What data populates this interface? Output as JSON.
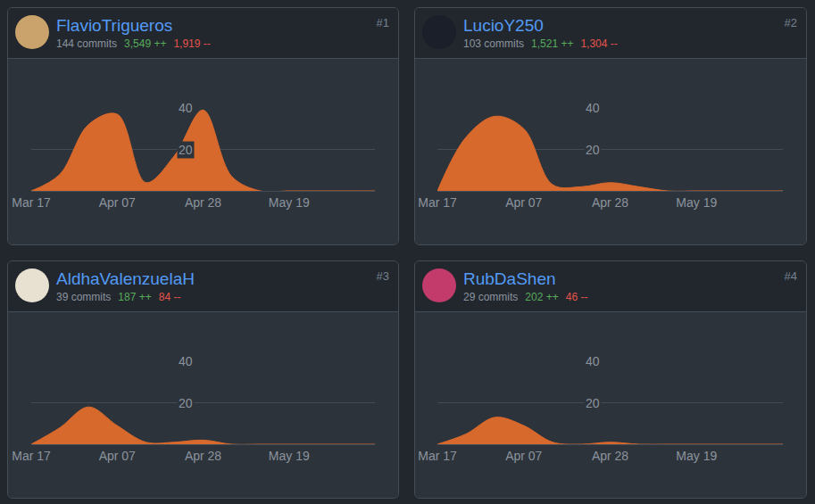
{
  "chart_data": [
    {
      "type": "area",
      "title": "FlavioTrigueros",
      "rank": "#1",
      "commits": "144 commits",
      "additions": "3,549 ++",
      "deletions": "1,919 --",
      "categories": [
        "Mar 17",
        null,
        null,
        "Apr 07",
        null,
        null,
        "Apr 28",
        null,
        null,
        "May 19",
        null,
        null,
        null
      ],
      "values": [
        0,
        8,
        32,
        37,
        4,
        17,
        39,
        7,
        0,
        0,
        0,
        0,
        0
      ],
      "color": "#d8692c",
      "ylim": [
        0,
        40
      ],
      "yticks": [
        20,
        40
      ],
      "grid": true
    },
    {
      "type": "area",
      "title": "LucioY250",
      "rank": "#2",
      "commits": "103 commits",
      "additions": "1,521 ++",
      "deletions": "1,304 --",
      "categories": [
        "Mar 17",
        null,
        null,
        "Apr 07",
        null,
        null,
        "Apr 28",
        null,
        null,
        "May 19",
        null,
        null,
        null
      ],
      "values": [
        0,
        26,
        36,
        30,
        3,
        2,
        4,
        2,
        0,
        0,
        0,
        0,
        0
      ],
      "color": "#d8692c",
      "ylim": [
        0,
        40
      ],
      "yticks": [
        20,
        40
      ],
      "grid": true
    },
    {
      "type": "area",
      "title": "AldhaValenzuelaH",
      "rank": "#3",
      "commits": "39 commits",
      "additions": "187 ++",
      "deletions": "84 --",
      "categories": [
        "Mar 17",
        null,
        null,
        "Apr 07",
        null,
        null,
        "Apr 28",
        null,
        null,
        "May 19",
        null,
        null,
        null
      ],
      "values": [
        0,
        8,
        18,
        9,
        1,
        1,
        2,
        0,
        0,
        0,
        0,
        0,
        0
      ],
      "color": "#d8692c",
      "ylim": [
        0,
        40
      ],
      "yticks": [
        20,
        40
      ],
      "grid": true
    },
    {
      "type": "area",
      "title": "RubDaShen",
      "rank": "#4",
      "commits": "29 commits",
      "additions": "202 ++",
      "deletions": "46 --",
      "categories": [
        "Mar 17",
        null,
        null,
        "Apr 07",
        null,
        null,
        "Apr 28",
        null,
        null,
        "May 19",
        null,
        null,
        null
      ],
      "values": [
        0,
        5,
        13,
        9,
        1,
        0,
        1,
        0,
        0,
        0,
        0,
        0,
        0
      ],
      "color": "#d8692c",
      "ylim": [
        0,
        40
      ],
      "yticks": [
        20,
        40
      ],
      "grid": true
    }
  ]
}
